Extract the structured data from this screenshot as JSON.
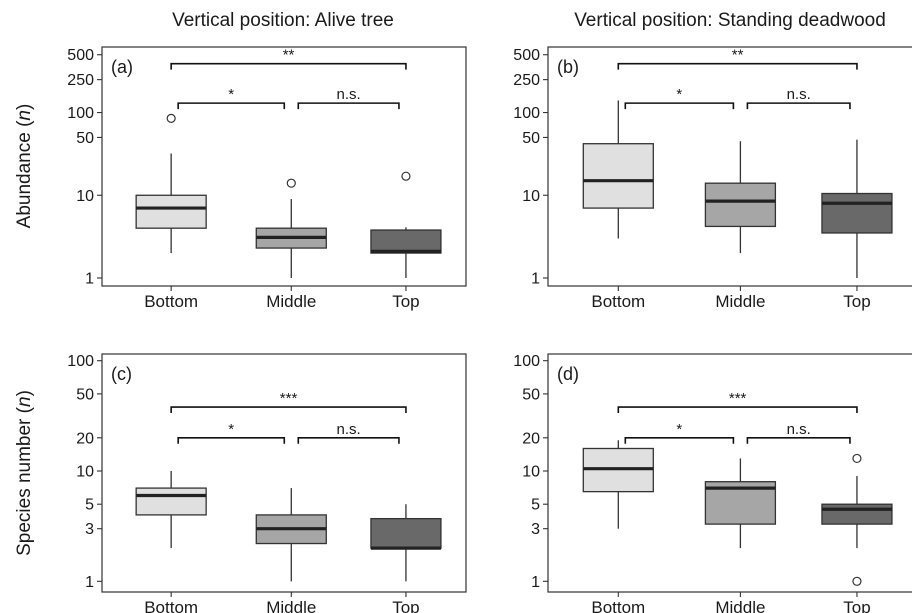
{
  "column_titles": [
    "Vertical position: Alive tree",
    "Vertical position: Standing deadwood"
  ],
  "row_ylabels": [
    "Abundance (n)",
    "Species number (n)"
  ],
  "chart_data": [
    {
      "type": "box",
      "panel": "(a)",
      "yscale": "log",
      "ylim": [
        0.8,
        620
      ],
      "yticks": [
        1,
        10,
        50,
        100,
        250,
        500
      ],
      "categories": [
        "Bottom",
        "Middle",
        "Top"
      ],
      "fill_colors": [
        "#e0e0e0",
        "#a6a6a6",
        "#696969"
      ],
      "boxes": [
        {
          "lower": 2,
          "q1": 4,
          "median": 7,
          "q3": 10,
          "upper": 32,
          "outliers": [
            85
          ]
        },
        {
          "lower": 1,
          "q1": 2.3,
          "median": 3.1,
          "q3": 4,
          "upper": 9,
          "outliers": [
            14
          ]
        },
        {
          "lower": 1,
          "q1": 2,
          "median": 2.1,
          "q3": 3.8,
          "upper": 4.1,
          "outliers": [
            17
          ]
        }
      ],
      "brackets": [
        {
          "from": 0,
          "to": 1,
          "label": "*",
          "y": 130
        },
        {
          "from": 1,
          "to": 2,
          "label": "n.s.",
          "y": 130
        },
        {
          "from": 0,
          "to": 2,
          "label": "**",
          "y": 390
        }
      ]
    },
    {
      "type": "box",
      "panel": "(b)",
      "yscale": "log",
      "ylim": [
        0.8,
        620
      ],
      "yticks": [
        1,
        10,
        50,
        100,
        250,
        500
      ],
      "categories": [
        "Bottom",
        "Middle",
        "Top"
      ],
      "fill_colors": [
        "#e0e0e0",
        "#a6a6a6",
        "#696969"
      ],
      "boxes": [
        {
          "lower": 3,
          "q1": 7,
          "median": 15,
          "q3": 42,
          "upper": 140,
          "outliers": []
        },
        {
          "lower": 2,
          "q1": 4.2,
          "median": 8.5,
          "q3": 14,
          "upper": 45,
          "outliers": []
        },
        {
          "lower": 1,
          "q1": 3.5,
          "median": 8,
          "q3": 10.5,
          "upper": 47,
          "outliers": []
        }
      ],
      "brackets": [
        {
          "from": 0,
          "to": 1,
          "label": "*",
          "y": 130
        },
        {
          "from": 1,
          "to": 2,
          "label": "n.s.",
          "y": 130
        },
        {
          "from": 0,
          "to": 2,
          "label": "**",
          "y": 390
        }
      ]
    },
    {
      "type": "box",
      "panel": "(c)",
      "yscale": "log",
      "ylim": [
        0.8,
        115
      ],
      "yticks": [
        1,
        3,
        5,
        10,
        20,
        50,
        100
      ],
      "categories": [
        "Bottom",
        "Middle",
        "Top"
      ],
      "fill_colors": [
        "#e0e0e0",
        "#a6a6a6",
        "#696969"
      ],
      "boxes": [
        {
          "lower": 2,
          "q1": 4,
          "median": 6,
          "q3": 7,
          "upper": 10,
          "outliers": []
        },
        {
          "lower": 1,
          "q1": 2.2,
          "median": 3,
          "q3": 4,
          "upper": 7,
          "outliers": []
        },
        {
          "lower": 1,
          "q1": 2,
          "median": 2,
          "q3": 3.7,
          "upper": 5,
          "outliers": []
        }
      ],
      "brackets": [
        {
          "from": 0,
          "to": 1,
          "label": "*",
          "y": 20
        },
        {
          "from": 1,
          "to": 2,
          "label": "n.s.",
          "y": 20
        },
        {
          "from": 0,
          "to": 2,
          "label": "***",
          "y": 38
        }
      ]
    },
    {
      "type": "box",
      "panel": "(d)",
      "yscale": "log",
      "ylim": [
        0.8,
        115
      ],
      "yticks": [
        1,
        3,
        5,
        10,
        20,
        50,
        100
      ],
      "categories": [
        "Bottom",
        "Middle",
        "Top"
      ],
      "fill_colors": [
        "#e0e0e0",
        "#a6a6a6",
        "#696969"
      ],
      "boxes": [
        {
          "lower": 3,
          "q1": 6.5,
          "median": 10.5,
          "q3": 16,
          "upper": 19,
          "outliers": []
        },
        {
          "lower": 2,
          "q1": 3.3,
          "median": 7,
          "q3": 8,
          "upper": 13,
          "outliers": []
        },
        {
          "lower": 2,
          "q1": 3.3,
          "median": 4.5,
          "q3": 5,
          "upper": 9,
          "outliers": [
            13,
            1
          ]
        }
      ],
      "brackets": [
        {
          "from": 0,
          "to": 1,
          "label": "*",
          "y": 20
        },
        {
          "from": 1,
          "to": 2,
          "label": "n.s.",
          "y": 20
        },
        {
          "from": 0,
          "to": 2,
          "label": "***",
          "y": 38
        }
      ]
    }
  ]
}
